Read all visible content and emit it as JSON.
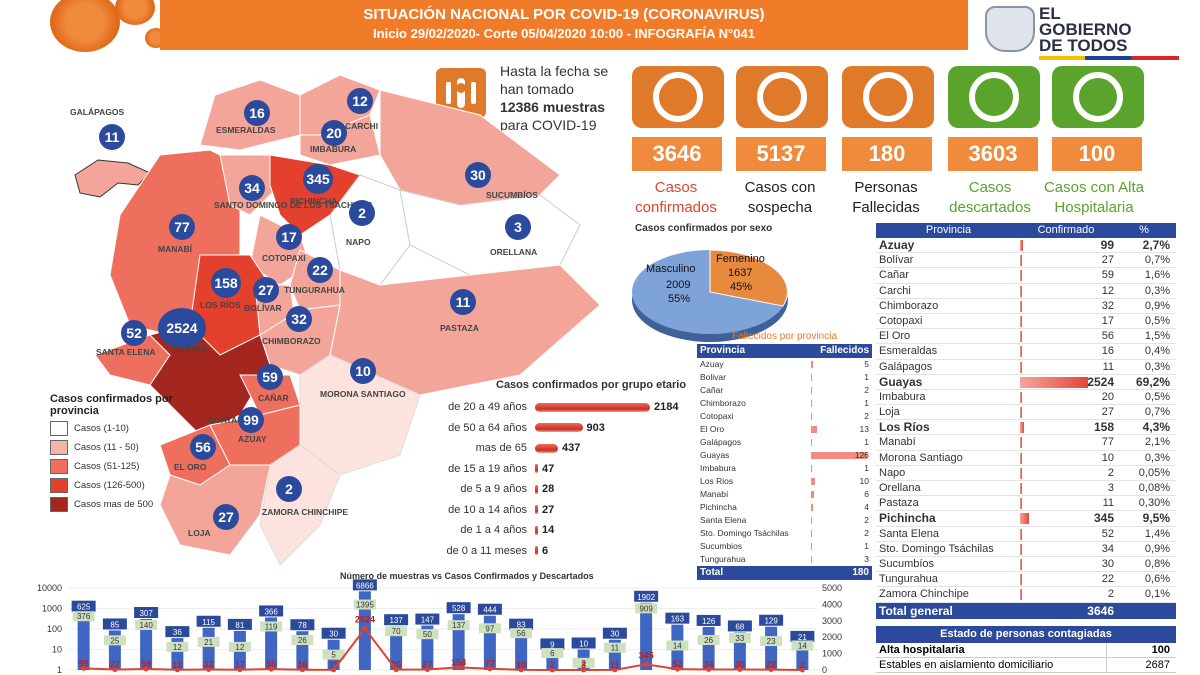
{
  "header": {
    "title": "SITUACIÓN NACIONAL POR COVID-19 (CORONAVIRUS)",
    "subtitle": "Inicio 29/02/2020- Corte 05/04/2020 10:00  - INFOGRAFÍA N°041"
  },
  "logo": {
    "line1": "EL",
    "line2": "GOBIERNO",
    "line3": "DE TODOS"
  },
  "samples": {
    "text_pre": "Hasta la fecha se han tomado ",
    "value": "12386",
    "text_bold": " muestras",
    "text_post": " para COVID-19",
    "icon": "test-tube-icon"
  },
  "stats": [
    {
      "value": "3646",
      "label": "Casos confirmados",
      "label_color": "#e0452c",
      "icon_color": "#e07a2b",
      "icon": "check-icon"
    },
    {
      "value": "5137",
      "label": "Casos con sospecha",
      "label_color": "#222222",
      "icon_color": "#e07a2b",
      "icon": "magnifier-icon"
    },
    {
      "value": "180",
      "label": "Personas Fallecidas",
      "label_color": "#222222",
      "icon_color": "#e07a2b",
      "icon": "person-x-icon"
    },
    {
      "value": "3603",
      "label": "Casos descartados",
      "label_color": "#5aa32c",
      "icon_color": "#5aa32c",
      "icon": "minus-icon"
    },
    {
      "value": "100",
      "label": "Casos con Alta Hospitalaria",
      "label_color": "#5aa32c",
      "icon_color": "#5aa32c",
      "icon": "person-check-icon"
    }
  ],
  "map": {
    "bubbles": [
      {
        "value": "11",
        "name": "GALÁPAGOS"
      },
      {
        "value": "16",
        "name": "ESMERALDAS"
      },
      {
        "value": "12",
        "name": "CARCHI"
      },
      {
        "value": "20",
        "name": "IMBABURA"
      },
      {
        "value": "345",
        "name": "PICHINCHA"
      },
      {
        "value": "34",
        "name": "SANTO DOMINGO DE LOS TSÁCHILAS"
      },
      {
        "value": "30",
        "name": "SUCUMBÍOS"
      },
      {
        "value": "77",
        "name": "MANABÍ"
      },
      {
        "value": "2",
        "name": "NAPO"
      },
      {
        "value": "3",
        "name": "ORELLANA"
      },
      {
        "value": "17",
        "name": "COTOPAXI"
      },
      {
        "value": "22",
        "name": "TUNGURAHUA"
      },
      {
        "value": "158",
        "name": "LOS RÍOS"
      },
      {
        "value": "27",
        "name": "BOLÍVAR"
      },
      {
        "value": "11",
        "name": "PASTAZA"
      },
      {
        "value": "52",
        "name": "SANTA ELENA"
      },
      {
        "value": "2524",
        "name": "GUAYAS"
      },
      {
        "value": "32",
        "name": "CHIMBORAZO"
      },
      {
        "value": "10",
        "name": "MORONA SANTIAGO"
      },
      {
        "value": "59",
        "name": "CAÑAR"
      },
      {
        "value": "99",
        "name": "AZUAY"
      },
      {
        "value": "56",
        "name": "EL ORO"
      },
      {
        "value": "2",
        "name": "ZAMORA CHINCHIPE"
      },
      {
        "value": "27",
        "name": "LOJA"
      }
    ],
    "extra_label": "GUAYAS"
  },
  "legend": {
    "title": "Casos confirmados por provincia",
    "items": [
      {
        "label": "Casos (1-10)",
        "color": "#ffffff"
      },
      {
        "label": "Casos (11 - 50)",
        "color": "#f6b3aa"
      },
      {
        "label": "Casos (51-125)",
        "color": "#ef6f5e"
      },
      {
        "label": "Casos (126-500)",
        "color": "#e3402e"
      },
      {
        "label": "Casos mas de 500",
        "color": "#a3271e"
      }
    ]
  },
  "sex": {
    "title": "Casos confirmados por sexo",
    "male_label": "Masculino",
    "male_count": "2009",
    "male_pct": "55%",
    "female_label": "Femenino",
    "female_count": "1637",
    "female_pct": "45%"
  },
  "age": {
    "title": "Casos confirmados por grupo etario",
    "rows": [
      {
        "label": "de 20 a 49 años",
        "value": "2184",
        "n": 2184
      },
      {
        "label": "de 50 a 64 años",
        "value": "903",
        "n": 903
      },
      {
        "label": "mas de 65",
        "value": "437",
        "n": 437
      },
      {
        "label": "de 15 a 19 años",
        "value": "47",
        "n": 47
      },
      {
        "label": "de 5 a 9 años",
        "value": "28",
        "n": 28
      },
      {
        "label": "de 10 a 14 años",
        "value": "27",
        "n": 27
      },
      {
        "label": "de 1 a 4 años",
        "value": "14",
        "n": 14
      },
      {
        "label": "de 0 a 11 meses",
        "value": "6",
        "n": 6
      }
    ]
  },
  "deaths": {
    "title": "Fallecidos por provincia",
    "col1": "Provincia",
    "col2": "Fallecidos",
    "rows": [
      {
        "name": "Azuay",
        "value": "5",
        "n": 5
      },
      {
        "name": "Bolivar",
        "value": "1",
        "n": 1
      },
      {
        "name": "Cañar",
        "value": "2",
        "n": 2
      },
      {
        "name": "Chimborazo",
        "value": "1",
        "n": 1
      },
      {
        "name": "Cotopaxi",
        "value": "2",
        "n": 2
      },
      {
        "name": "El Oro",
        "value": "13",
        "n": 13
      },
      {
        "name": "Galápagos",
        "value": "1",
        "n": 1
      },
      {
        "name": "Guayas",
        "value": "126",
        "n": 126
      },
      {
        "name": "Imbabura",
        "value": "1",
        "n": 1
      },
      {
        "name": "Los Rios",
        "value": "10",
        "n": 10
      },
      {
        "name": "Manabí",
        "value": "6",
        "n": 6
      },
      {
        "name": "Pichincha",
        "value": "4",
        "n": 4
      },
      {
        "name": "Santa Elena",
        "value": "2",
        "n": 2
      },
      {
        "name": "Sto. Domingo Tsáchilas",
        "value": "2",
        "n": 2
      },
      {
        "name": "Sucumbios",
        "value": "1",
        "n": 1
      },
      {
        "name": "Tungurahua",
        "value": "3",
        "n": 3
      }
    ],
    "total_label": "Total",
    "total_value": "180"
  },
  "province_table": {
    "col1": "Provincia",
    "col2": "Confirmado",
    "col3": "%",
    "rows": [
      {
        "name": "Azuay",
        "value": "99",
        "pct": "2,7%",
        "n": 99,
        "bold": true
      },
      {
        "name": "Bolívar",
        "value": "27",
        "pct": "0,7%",
        "n": 27,
        "bold": false
      },
      {
        "name": "Cañar",
        "value": "59",
        "pct": "1,6%",
        "n": 59,
        "bold": false
      },
      {
        "name": "Carchi",
        "value": "12",
        "pct": "0,3%",
        "n": 12,
        "bold": false
      },
      {
        "name": "Chimborazo",
        "value": "32",
        "pct": "0,9%",
        "n": 32,
        "bold": false
      },
      {
        "name": "Cotopaxi",
        "value": "17",
        "pct": "0,5%",
        "n": 17,
        "bold": false
      },
      {
        "name": "El Oro",
        "value": "56",
        "pct": "1,5%",
        "n": 56,
        "bold": false
      },
      {
        "name": "Esmeraldas",
        "value": "16",
        "pct": "0,4%",
        "n": 16,
        "bold": false
      },
      {
        "name": "Galápagos",
        "value": "11",
        "pct": "0,3%",
        "n": 11,
        "bold": false
      },
      {
        "name": "Guayas",
        "value": "2524",
        "pct": "69,2%",
        "n": 2524,
        "bold": true
      },
      {
        "name": "Imbabura",
        "value": "20",
        "pct": "0,5%",
        "n": 20,
        "bold": false
      },
      {
        "name": "Loja",
        "value": "27",
        "pct": "0,7%",
        "n": 27,
        "bold": false
      },
      {
        "name": "Los Ríos",
        "value": "158",
        "pct": "4,3%",
        "n": 158,
        "bold": true
      },
      {
        "name": "Manabí",
        "value": "77",
        "pct": "2,1%",
        "n": 77,
        "bold": false
      },
      {
        "name": "Morona Santiago",
        "value": "10",
        "pct": "0,3%",
        "n": 10,
        "bold": false
      },
      {
        "name": "Napo",
        "value": "2",
        "pct": "0,05%",
        "n": 2,
        "bold": false
      },
      {
        "name": "Orellana",
        "value": "3",
        "pct": "0,08%",
        "n": 3,
        "bold": false
      },
      {
        "name": "Pastaza",
        "value": "11",
        "pct": "0,30%",
        "n": 11,
        "bold": false
      },
      {
        "name": "Pichincha",
        "value": "345",
        "pct": "9,5%",
        "n": 345,
        "bold": true
      },
      {
        "name": "Santa Elena",
        "value": "52",
        "pct": "1,4%",
        "n": 52,
        "bold": false
      },
      {
        "name": "Sto. Domingo Tsáchilas",
        "value": "34",
        "pct": "0,9%",
        "n": 34,
        "bold": false
      },
      {
        "name": "Sucumbíos",
        "value": "30",
        "pct": "0,8%",
        "n": 30,
        "bold": false
      },
      {
        "name": "Tungurahua",
        "value": "22",
        "pct": "0,6%",
        "n": 22,
        "bold": false
      },
      {
        "name": "Zamora Chinchipe",
        "value": "2",
        "pct": "0,1%",
        "n": 2,
        "bold": false
      }
    ],
    "total_label": "Total general",
    "total_value": "3646"
  },
  "estado": {
    "title": "Estado de personas contagiadas",
    "rows": [
      {
        "label": "Alta hospitalaria",
        "value": "100"
      },
      {
        "label": "Estables en aislamiento domiciliario",
        "value": "2687"
      }
    ]
  },
  "chart_data": {
    "type": "bar",
    "title": "Número de muestras vs Casos Confirmados y Descartados",
    "y_left_ticks": [
      "10000",
      "1000",
      "100",
      "10",
      "1"
    ],
    "y_right_ticks": [
      "5000",
      "4000",
      "3000",
      "2000",
      "1000",
      "0"
    ],
    "series": [
      {
        "name": "Muestras",
        "values": [
          625,
          85,
          307,
          36,
          115,
          81,
          366,
          78,
          30,
          6866,
          137,
          147,
          528,
          444,
          83,
          9,
          10,
          30,
          1902,
          163,
          126,
          68,
          129,
          21
        ]
      },
      {
        "name": "Descartados",
        "values": [
          376,
          25,
          140,
          12,
          21,
          12,
          119,
          26,
          5,
          1395,
          70,
          50,
          137,
          97,
          56,
          6,
          2,
          11,
          909,
          14,
          26,
          33,
          23,
          14
        ]
      },
      {
        "name": "Confirmados",
        "values": [
          99,
          27,
          59,
          12,
          32,
          17,
          56,
          16,
          11,
          2524,
          20,
          27,
          158,
          77,
          10,
          2,
          3,
          11,
          345,
          52,
          34,
          30,
          22,
          2
        ]
      }
    ]
  }
}
